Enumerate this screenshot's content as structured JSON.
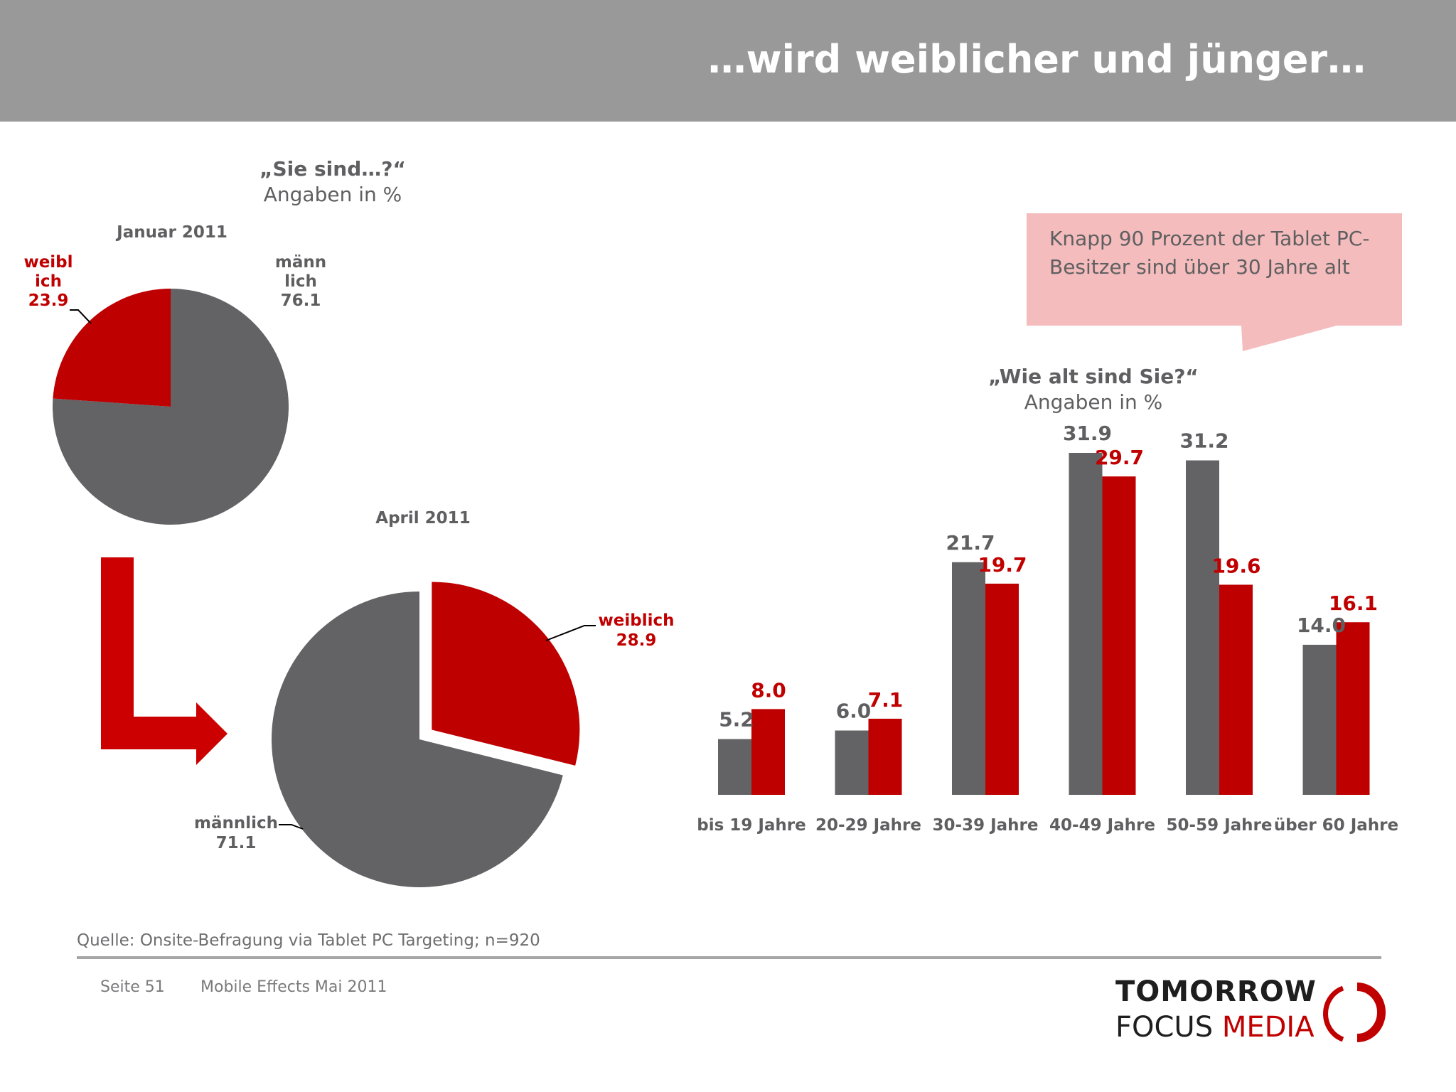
{
  "header": {
    "title": "…wird weiblicher und jünger…"
  },
  "pie_question": {
    "title": "„Sie sind…?“",
    "subtitle": "Angaben in %"
  },
  "bar_question": {
    "title": "„Wie alt sind Sie?“",
    "subtitle": "Angaben in %"
  },
  "callout": {
    "text": "Knapp 90 Prozent der Tablet PC-Besitzer sind über 30 Jahre alt"
  },
  "source": "Quelle: Onsite-Befragung via Tablet PC Targeting; n=920",
  "footer": {
    "page": "Seite 51",
    "report": "Mobile Effects Mai 2011"
  },
  "logo": {
    "line1": "TOMORROW",
    "line2a": "FOCUS",
    "line2b": "MEDIA"
  },
  "colors": {
    "grey": "#636366",
    "red": "#be0000",
    "label_red": "#c00000",
    "label_grey": "#5f5f61"
  },
  "chart_data": [
    {
      "type": "pie",
      "title": "Januar 2011",
      "slices": [
        {
          "name": "weiblich",
          "label_lines": [
            "weibl",
            "ich"
          ],
          "value": 23.9,
          "value_label": "23.9",
          "color": "#be0000"
        },
        {
          "name": "männlich",
          "label_lines": [
            "männ",
            "lich"
          ],
          "value": 76.1,
          "value_label": "76.1",
          "color": "#636366"
        }
      ]
    },
    {
      "type": "pie",
      "title": "April 2011",
      "slices": [
        {
          "name": "weiblich",
          "label_lines": [
            "weiblich"
          ],
          "value": 28.9,
          "value_label": "28.9",
          "color": "#be0000",
          "exploded": true
        },
        {
          "name": "männlich",
          "label_lines": [
            "männlich"
          ],
          "value": 71.1,
          "value_label": "71.1",
          "color": "#636366"
        }
      ]
    },
    {
      "type": "bar",
      "title": "„Wie alt sind Sie?“",
      "categories": [
        "bis 19 Jahre",
        "20-29 Jahre",
        "30-39 Jahre",
        "40-49 Jahre",
        "50-59 Jahre",
        "über 60 Jahre"
      ],
      "series": [
        {
          "name": "Januar 2011",
          "color": "#636366",
          "values": [
            5.2,
            6.0,
            21.7,
            31.9,
            31.2,
            14.0
          ],
          "labels": [
            "5.2",
            "6.0",
            "21.7",
            "31.9",
            "31.2",
            "14.0"
          ]
        },
        {
          "name": "April 2011",
          "color": "#be0000",
          "values": [
            8.0,
            7.1,
            19.7,
            29.7,
            19.6,
            16.1
          ],
          "labels": [
            "8.0",
            "7.1",
            "19.7",
            "29.7",
            "19.6",
            "16.1"
          ]
        }
      ],
      "ylim": [
        0,
        35
      ],
      "xlabel": "",
      "ylabel": "",
      "grid": false,
      "legend": "none"
    }
  ]
}
